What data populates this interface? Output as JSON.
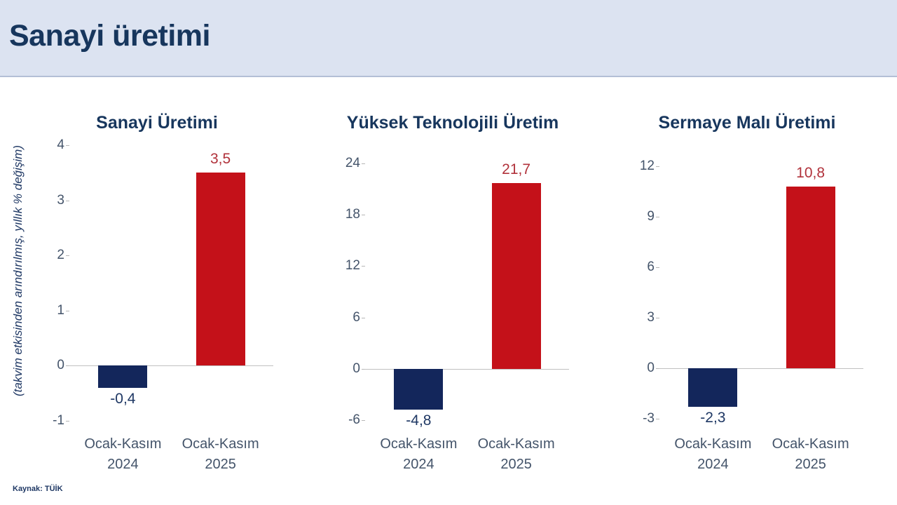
{
  "header": {
    "title": "Sanayi üretimi"
  },
  "y_axis_label": "(takvim etkisinden arındırılmış, yıllık % değişim)",
  "source_note": "Kaynak: TÜİK",
  "colors": {
    "header_bg": "#dce3f1",
    "title_navy": "#17365d",
    "bar_navy": "#13265b",
    "bar_red": "#c41119",
    "value_label_navy": "#1f3864",
    "value_label_red": "#b1323b",
    "axis_text": "#44546a",
    "gridline": "#c0c0c0"
  },
  "chart_data": [
    {
      "type": "bar",
      "title": "Sanayi Üretimi",
      "categories": [
        "Ocak-Kasım 2024",
        "Ocak-Kasım 2025"
      ],
      "values": [
        -0.4,
        3.5
      ],
      "value_labels": [
        "-0,4",
        "3,5"
      ],
      "yticks": [
        4,
        3,
        2,
        1,
        0,
        -1
      ],
      "ylim": [
        -1,
        4
      ],
      "grid": false,
      "legend": false
    },
    {
      "type": "bar",
      "title": "Yüksek Teknolojili Üretim",
      "categories": [
        "Ocak-Kasım 2024",
        "Ocak-Kasım 2025"
      ],
      "values": [
        -4.8,
        21.7
      ],
      "value_labels": [
        "-4,8",
        "21,7"
      ],
      "yticks": [
        24,
        18,
        12,
        6,
        0,
        -6
      ],
      "ylim": [
        -6,
        24
      ],
      "grid": false,
      "legend": false
    },
    {
      "type": "bar",
      "title": "Sermaye Malı Üretimi",
      "categories": [
        "Ocak-Kasım 2024",
        "Ocak-Kasım 2025"
      ],
      "values": [
        -2.3,
        10.8
      ],
      "value_labels": [
        "-2,3",
        "10,8"
      ],
      "yticks": [
        12,
        9,
        6,
        3,
        0,
        -3
      ],
      "ylim": [
        -3,
        12
      ],
      "grid": false,
      "legend": false
    }
  ]
}
